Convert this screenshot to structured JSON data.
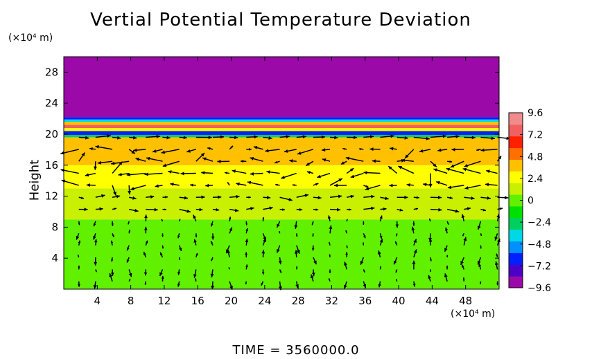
{
  "chart_data": {
    "type": "heatmap",
    "title": "Vertial Potential Temperature Deviation",
    "ylabel": "Height",
    "xlabel": "",
    "x_unit_label": "(×10⁴ m)",
    "y_unit_label": "(×10⁴ m)",
    "footer": "TIME = 3560000.0",
    "xlim": [
      0,
      52
    ],
    "ylim": [
      0,
      30
    ],
    "x_ticks": [
      4,
      8,
      12,
      16,
      20,
      24,
      28,
      32,
      36,
      40,
      44,
      48
    ],
    "y_ticks": [
      4,
      8,
      12,
      16,
      20,
      24,
      28
    ],
    "colorbar": {
      "ticks": [
        9.6,
        7.2,
        4.8,
        2.4,
        0,
        -2.4,
        -4.8,
        -7.2,
        -9.6
      ],
      "tick_labels": [
        "9.6",
        "7.2",
        "4.8",
        "2.4",
        "0",
        "−2.4",
        "−4.8",
        "−7.2",
        "−9.6"
      ],
      "range": [
        -9.6,
        9.6
      ]
    },
    "bands": [
      {
        "y_from": 0,
        "y_to": 9,
        "value": 0.3
      },
      {
        "y_from": 9,
        "y_to": 10,
        "value": 1.0
      },
      {
        "y_from": 10,
        "y_to": 13,
        "value": 1.8
      },
      {
        "y_from": 13,
        "y_to": 16,
        "value": 2.6
      },
      {
        "y_from": 16,
        "y_to": 18,
        "value": 3.6
      },
      {
        "y_from": 18,
        "y_to": 19.6,
        "value": 4.4
      },
      {
        "y_from": 19.6,
        "y_to": 19.9,
        "value": -3.0
      },
      {
        "y_from": 19.9,
        "y_to": 20.4,
        "value": -6.5
      },
      {
        "y_from": 20.4,
        "y_to": 20.8,
        "value": 2.4
      },
      {
        "y_from": 20.8,
        "y_to": 21.2,
        "value": 7.5
      },
      {
        "y_from": 21.2,
        "y_to": 21.6,
        "value": 3.5
      },
      {
        "y_from": 21.6,
        "y_to": 21.9,
        "value": -3.5
      },
      {
        "y_from": 21.9,
        "y_to": 22.2,
        "value": -7.0
      },
      {
        "y_from": 22.2,
        "y_to": 30,
        "value": -9.8
      }
    ],
    "vector_field": "wind arrows on a regular grid, strongest between height 12 and 20"
  },
  "colors": {
    "scale": [
      "#9b0aa8",
      "#4b00c8",
      "#0020ff",
      "#0090ff",
      "#00d8e8",
      "#00d060",
      "#00e000",
      "#60f000",
      "#c8f000",
      "#ffff00",
      "#ffc000",
      "#ff7000",
      "#ff2000",
      "#f06060",
      "#f08c8c"
    ]
  }
}
